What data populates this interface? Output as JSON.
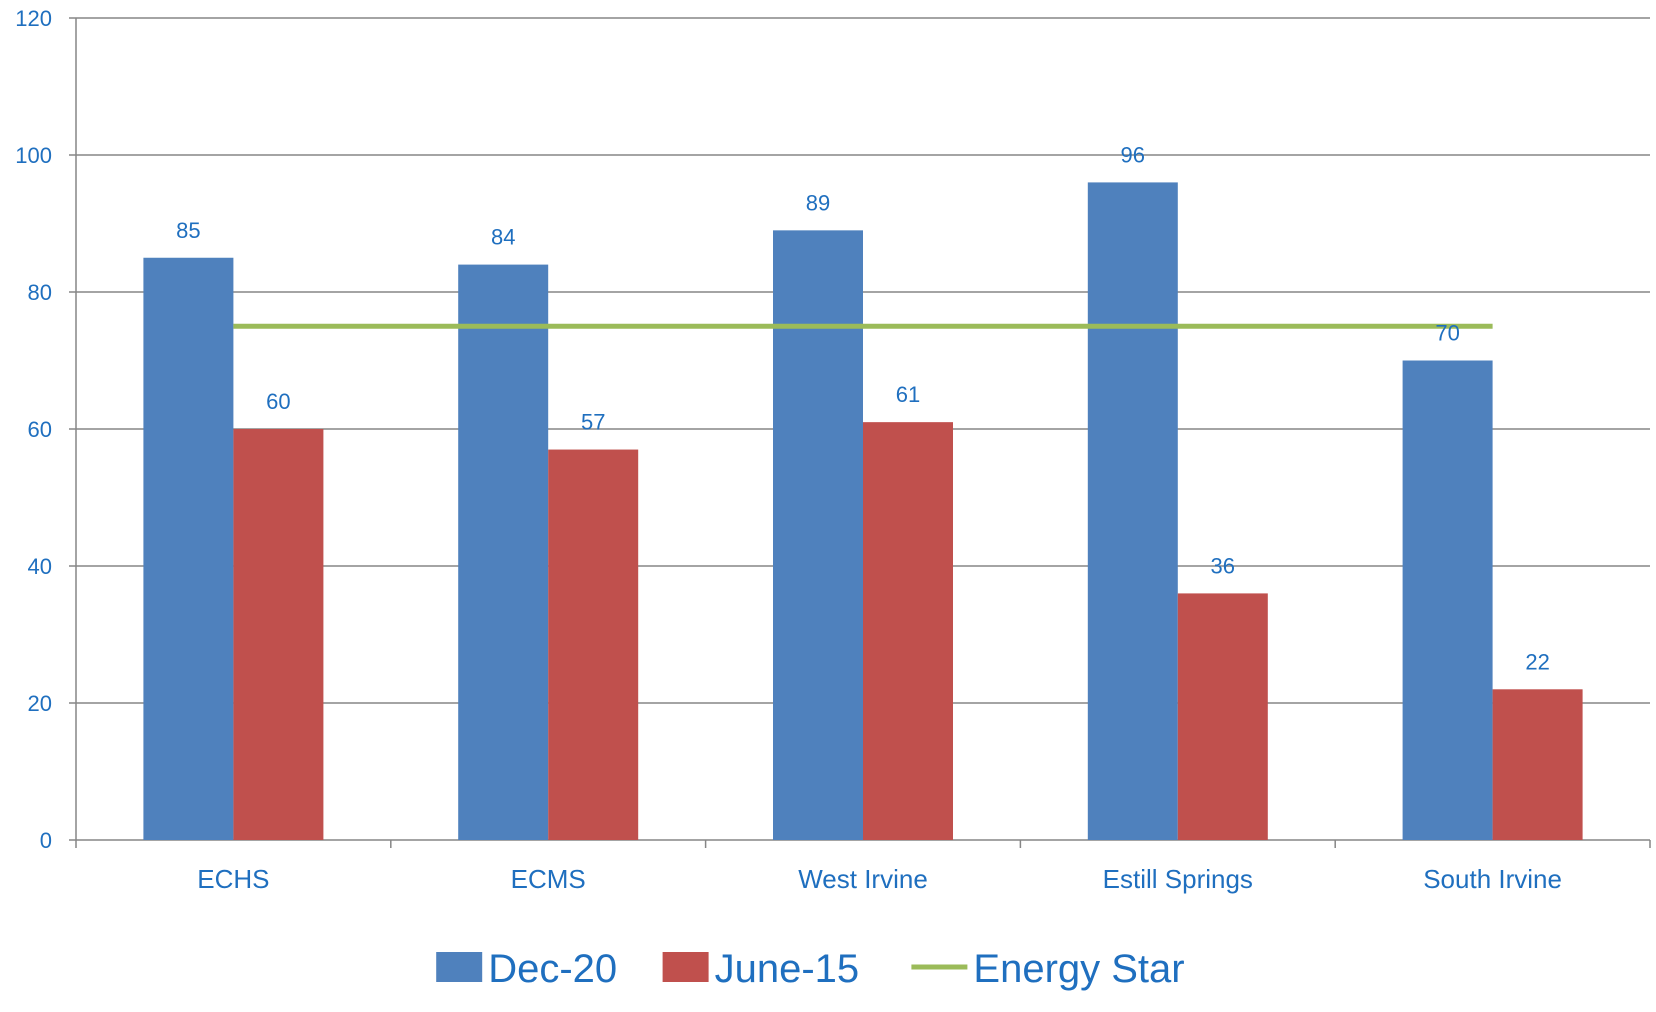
{
  "chart_data": {
    "type": "bar",
    "title": "",
    "xlabel": "",
    "ylabel": "",
    "categories": [
      "ECHS",
      "ECMS",
      "West Irvine",
      "Estill Springs",
      "South Irvine"
    ],
    "series": [
      {
        "name": "Dec-20",
        "kind": "bar",
        "color": "#4F81BD",
        "values": [
          85,
          84,
          89,
          96,
          70
        ]
      },
      {
        "name": "June-15",
        "kind": "bar",
        "color": "#C0504D",
        "values": [
          60,
          57,
          61,
          36,
          22
        ]
      },
      {
        "name": "Energy Star",
        "kind": "line",
        "color": "#9BBB59",
        "values": [
          75,
          75,
          75,
          75,
          75
        ]
      }
    ],
    "ylim": [
      0,
      120
    ],
    "yticks": [
      0,
      20,
      40,
      60,
      80,
      100,
      120
    ],
    "data_labels": true,
    "grid": true,
    "legend": "bottom",
    "colors": {
      "label_text": "#1F6FBF",
      "axis": "#868686",
      "grid": "#868686"
    }
  }
}
